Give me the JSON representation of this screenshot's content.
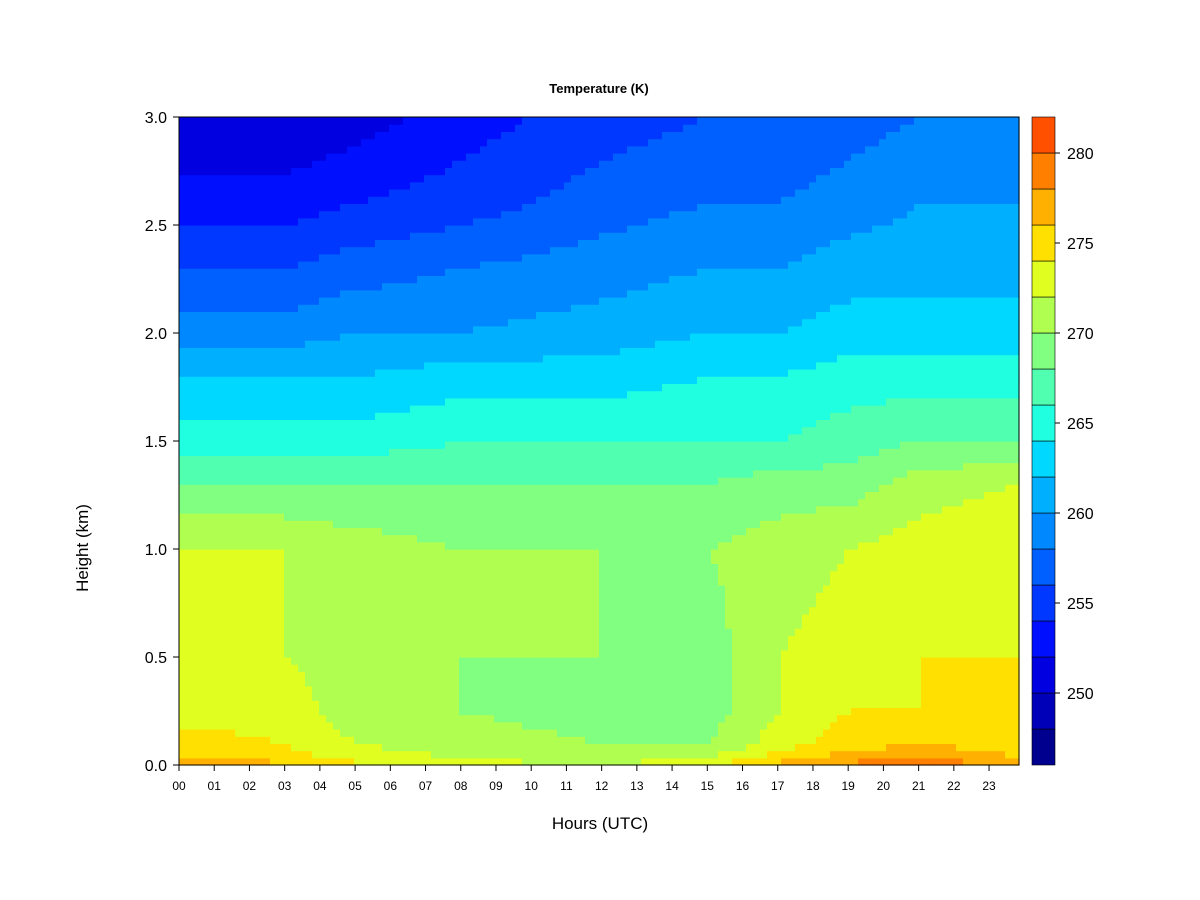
{
  "chart_data": {
    "type": "heatmap",
    "title": "Temperature (K)",
    "xlabel": "Hours (UTC)",
    "ylabel": "Height (km)",
    "x_ticks": [
      "00",
      "01",
      "02",
      "03",
      "04",
      "05",
      "06",
      "07",
      "08",
      "09",
      "10",
      "11",
      "12",
      "13",
      "14",
      "15",
      "16",
      "17",
      "18",
      "19",
      "20",
      "21",
      "22",
      "23"
    ],
    "y_ticks": [
      "0.0",
      "0.5",
      "1.0",
      "1.5",
      "2.0",
      "2.5",
      "3.0"
    ],
    "xlim": [
      0,
      23.85
    ],
    "ylim": [
      0.0,
      3.0
    ],
    "colorbar": {
      "min": 246,
      "max": 282,
      "step": 2,
      "tick_labels": [
        "250",
        "255",
        "260",
        "265",
        "270",
        "275",
        "280"
      ],
      "tick_values": [
        250,
        255,
        260,
        265,
        270,
        275,
        280
      ],
      "colors": [
        "#00008f",
        "#0000b8",
        "#0000e0",
        "#0010ff",
        "#0038ff",
        "#0060ff",
        "#0088ff",
        "#00b0ff",
        "#00d8ff",
        "#20ffe0",
        "#50ffb0",
        "#80ff80",
        "#b0ff50",
        "#e0ff20",
        "#ffe000",
        "#ffb000",
        "#ff8000",
        "#ff5000",
        "#ff2000",
        "#e00000",
        "#b00000",
        "#800000"
      ]
    },
    "profile_heights_km": [
      0.0,
      0.03,
      0.1,
      0.25,
      0.5,
      1.0,
      1.3,
      1.5,
      1.8,
      2.0,
      2.3,
      2.6,
      3.0
    ],
    "profiles": [
      {
        "hour": 0,
        "temps": [
          278,
          276,
          275,
          273,
          272,
          272,
          268,
          265,
          262,
          259,
          256,
          253,
          250
        ]
      },
      {
        "hour": 3,
        "temps": [
          277,
          275,
          274,
          273,
          272,
          272,
          268,
          265,
          262,
          259,
          256,
          253,
          250
        ]
      },
      {
        "hour": 5,
        "temps": [
          275,
          273,
          272,
          271,
          271,
          271,
          268,
          265,
          262,
          260,
          257,
          254,
          251
        ]
      },
      {
        "hour": 8,
        "temps": [
          273,
          272,
          271,
          270,
          270,
          270,
          268,
          266,
          263,
          260,
          258,
          255,
          253
        ]
      },
      {
        "hour": 12,
        "temps": [
          272,
          271,
          270,
          269,
          270,
          270,
          268,
          266,
          263,
          261,
          259,
          257,
          255
        ]
      },
      {
        "hour": 15,
        "temps": [
          274,
          272,
          270,
          269,
          269,
          270,
          268,
          266,
          264,
          262,
          260,
          258,
          256
        ]
      },
      {
        "hour": 17,
        "temps": [
          277,
          275,
          273,
          272,
          272,
          271,
          269,
          266,
          264,
          262,
          260,
          258,
          256
        ]
      },
      {
        "hour": 19,
        "temps": [
          279,
          277,
          275,
          274,
          273,
          272,
          269,
          267,
          265,
          263,
          261,
          259,
          257
        ]
      },
      {
        "hour": 21,
        "temps": [
          280,
          278,
          276,
          274,
          274,
          273,
          271,
          268,
          265,
          263,
          261,
          260,
          258
        ]
      },
      {
        "hour": 23.85,
        "temps": [
          278,
          276,
          275,
          274,
          274,
          274,
          272,
          268,
          265,
          263,
          261,
          260,
          259
        ]
      }
    ]
  }
}
